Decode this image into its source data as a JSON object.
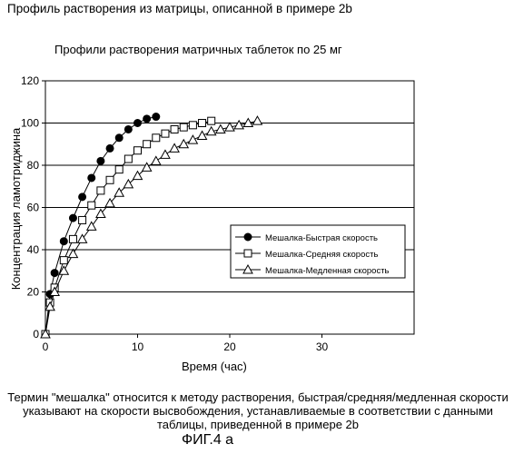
{
  "header": "Профиль растворения из матрицы, описанной в примере 2b",
  "caption": "Термин \"мешалка\" относится к методу растворения, быстрая/средняя/медленная скорости указывают на скорости высвобождения, устанавливаемые в соответствии с данными таблицы, приведенной в примере 2b",
  "figure_label": "ФИГ.4 а",
  "chart_data": {
    "type": "scatter",
    "title": "Профили растворения матричных таблеток по 25 мг",
    "xlabel": "Время (час)",
    "ylabel": "Концентрация ламотриджина",
    "xlim": [
      0,
      40
    ],
    "ylim": [
      0,
      120
    ],
    "x_ticks": [
      "0",
      "10",
      "20",
      "30"
    ],
    "y_ticks": [
      "0",
      "20",
      "40",
      "60",
      "80",
      "100",
      "120"
    ],
    "grid": "horizontal",
    "legend_position": "right",
    "series": [
      {
        "name": "Мешалка-Быстрая скорость",
        "marker": "filled-circle",
        "x": [
          0,
          0.5,
          1,
          2,
          3,
          4,
          5,
          6,
          7,
          8,
          9,
          10,
          11,
          12
        ],
        "y": [
          0,
          19,
          29,
          44,
          55,
          65,
          74,
          82,
          88,
          93,
          97,
          100,
          102,
          103
        ]
      },
      {
        "name": "Мешалка-Средняя скорость",
        "marker": "open-square",
        "x": [
          0,
          0.5,
          1,
          2,
          3,
          4,
          5,
          6,
          7,
          8,
          9,
          10,
          11,
          12,
          13,
          14,
          15,
          16,
          17,
          18
        ],
        "y": [
          0,
          15,
          22,
          35,
          45,
          54,
          61,
          68,
          73,
          78,
          83,
          87,
          90,
          93,
          95,
          97,
          98,
          99,
          100,
          101
        ]
      },
      {
        "name": "Мешалка-Медленная скорость",
        "marker": "open-triangle",
        "x": [
          0,
          0.5,
          1,
          2,
          3,
          4,
          5,
          6,
          7,
          8,
          9,
          10,
          11,
          12,
          13,
          14,
          15,
          16,
          17,
          18,
          19,
          20,
          21,
          22,
          23
        ],
        "y": [
          0,
          13,
          20,
          30,
          38,
          45,
          51,
          57,
          62,
          67,
          71,
          75,
          79,
          82,
          85,
          88,
          90,
          92,
          94,
          96,
          97,
          98,
          99,
          100,
          101
        ]
      }
    ]
  }
}
